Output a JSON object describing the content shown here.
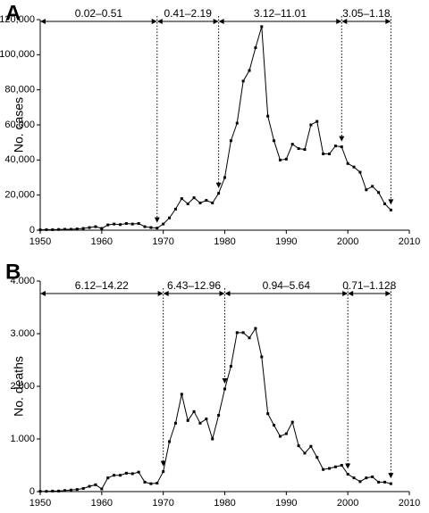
{
  "chart_data": [
    {
      "type": "line",
      "panel": "A",
      "ylabel": "No. cases",
      "color": "#000000",
      "x": [
        1950,
        1951,
        1952,
        1953,
        1954,
        1955,
        1956,
        1957,
        1958,
        1959,
        1960,
        1961,
        1962,
        1963,
        1964,
        1965,
        1966,
        1967,
        1968,
        1969,
        1970,
        1971,
        1972,
        1973,
        1974,
        1975,
        1976,
        1977,
        1978,
        1979,
        1980,
        1981,
        1982,
        1983,
        1984,
        1985,
        1986,
        1987,
        1988,
        1989,
        1990,
        1991,
        1992,
        1993,
        1994,
        1995,
        1996,
        1997,
        1998,
        1999,
        2000,
        2001,
        2002,
        2003,
        2004,
        2005,
        2006,
        2007
      ],
      "values": [
        200,
        300,
        300,
        400,
        500,
        500,
        700,
        1000,
        1500,
        2000,
        1000,
        3000,
        3500,
        3200,
        3800,
        3500,
        3800,
        2000,
        1500,
        1200,
        3500,
        7000,
        12000,
        18000,
        15000,
        18500,
        15500,
        17000,
        15500,
        21000,
        30000,
        51000,
        61000,
        85000,
        91000,
        104000,
        116000,
        65000,
        51000,
        40000,
        40500,
        49000,
        46500,
        46000,
        60000,
        62000,
        43500,
        43500,
        48000,
        47500,
        38000,
        36000,
        33000,
        23000,
        25000,
        21500,
        15000,
        11500
      ],
      "xlim": [
        1950,
        2010
      ],
      "xticks": [
        1950,
        1960,
        1970,
        1980,
        1990,
        2000,
        2010
      ],
      "ylim": [
        0,
        120000
      ],
      "yticks": [
        0,
        {
          "value": 20000,
          "label": "20,000"
        },
        {
          "value": 40000,
          "label": "40,000"
        },
        {
          "value": 60000,
          "label": "60,000"
        },
        {
          "value": 80000,
          "label": "80,000"
        },
        {
          "value": 100000,
          "label": "100,000"
        },
        {
          "value": 120000,
          "label": "120,000"
        }
      ],
      "annotations": [
        {
          "label": "0.02–0.51",
          "from": 1950,
          "to": 1969
        },
        {
          "label": "0.41–2.19",
          "from": 1969,
          "to": 1979
        },
        {
          "label": "3.12–11.01",
          "from": 1979,
          "to": 1999
        },
        {
          "label": "3.05–1.18",
          "from": 1999,
          "to": 2007
        }
      ]
    },
    {
      "type": "line",
      "panel": "B",
      "ylabel": "No. deaths",
      "color": "#000000",
      "x": [
        1950,
        1951,
        1952,
        1953,
        1954,
        1955,
        1956,
        1957,
        1958,
        1959,
        1960,
        1961,
        1962,
        1963,
        1964,
        1965,
        1966,
        1967,
        1968,
        1969,
        1970,
        1971,
        1972,
        1973,
        1974,
        1975,
        1976,
        1977,
        1978,
        1979,
        1980,
        1981,
        1982,
        1983,
        1984,
        1985,
        1986,
        1987,
        1988,
        1989,
        1990,
        1991,
        1992,
        1993,
        1994,
        1995,
        1996,
        1997,
        1998,
        1999,
        2000,
        2001,
        2002,
        2003,
        2004,
        2005,
        2006,
        2007
      ],
      "values": [
        5,
        5,
        10,
        10,
        20,
        30,
        40,
        60,
        100,
        130,
        50,
        260,
        310,
        310,
        350,
        340,
        370,
        180,
        150,
        160,
        380,
        950,
        1300,
        1850,
        1350,
        1520,
        1300,
        1380,
        1000,
        1450,
        1950,
        2380,
        3020,
        3020,
        2920,
        3100,
        2560,
        1480,
        1260,
        1050,
        1100,
        1320,
        870,
        730,
        860,
        650,
        420,
        440,
        470,
        500,
        330,
        260,
        190,
        260,
        280,
        180,
        180,
        150
      ],
      "xlim": [
        1950,
        2010
      ],
      "xticks": [
        1950,
        1960,
        1970,
        1980,
        1990,
        2000,
        2010
      ],
      "ylim": [
        0,
        4000
      ],
      "yticks": [
        0,
        {
          "value": 1000,
          "label": "1.000"
        },
        {
          "value": 2000,
          "label": "2.000"
        },
        {
          "value": 3000,
          "label": "3.000"
        },
        {
          "value": 4000,
          "label": "4.000"
        }
      ],
      "annotations": [
        {
          "label": "6.12–14.22",
          "from": 1950,
          "to": 1970
        },
        {
          "label": "6.43–12.96",
          "from": 1970,
          "to": 1980
        },
        {
          "label": "0.94–5.64",
          "from": 1980,
          "to": 2000
        },
        {
          "label": "0.71–1.128",
          "from": 2000,
          "to": 2007
        }
      ]
    }
  ]
}
